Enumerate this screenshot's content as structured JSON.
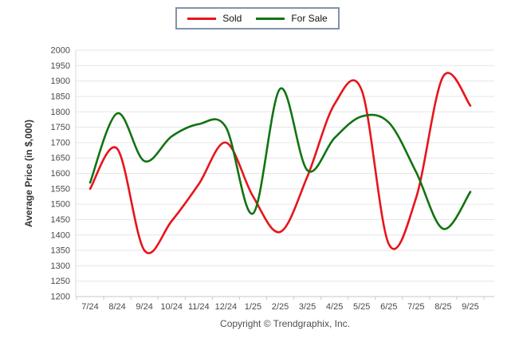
{
  "legend": {
    "items": [
      {
        "label": "Sold",
        "color": "#e8131b"
      },
      {
        "label": "For Sale",
        "color": "#117311"
      }
    ]
  },
  "chart_data": {
    "type": "line",
    "title": "",
    "xlabel": "",
    "ylabel": "Average Price (in $,000)",
    "categories": [
      "7/24",
      "8/24",
      "9/24",
      "10/24",
      "11/24",
      "12/24",
      "1/25",
      "2/25",
      "3/25",
      "4/25",
      "5/25",
      "6/25",
      "7/25",
      "8/25",
      "9/25"
    ],
    "series": [
      {
        "name": "Sold",
        "color": "#e8131b",
        "values": [
          1550,
          1680,
          1350,
          1445,
          1565,
          1700,
          1525,
          1410,
          1590,
          1825,
          1870,
          1370,
          1520,
          1915,
          1820
        ]
      },
      {
        "name": "For Sale",
        "color": "#117311",
        "values": [
          1570,
          1795,
          1640,
          1720,
          1760,
          1750,
          1470,
          1875,
          1610,
          1715,
          1785,
          1765,
          1605,
          1420,
          1540
        ]
      }
    ],
    "ylim": [
      1200,
      2000
    ],
    "yticks": [
      2000,
      1950,
      1900,
      1850,
      1800,
      1750,
      1700,
      1650,
      1600,
      1550,
      1500,
      1450,
      1400,
      1350,
      1300,
      1250,
      1200
    ],
    "grid": "horizontal",
    "legend_position": "top-center",
    "line_smoothing": "spline"
  },
  "footer": {
    "copyright": "Copyright © Trendgraphix, Inc."
  }
}
